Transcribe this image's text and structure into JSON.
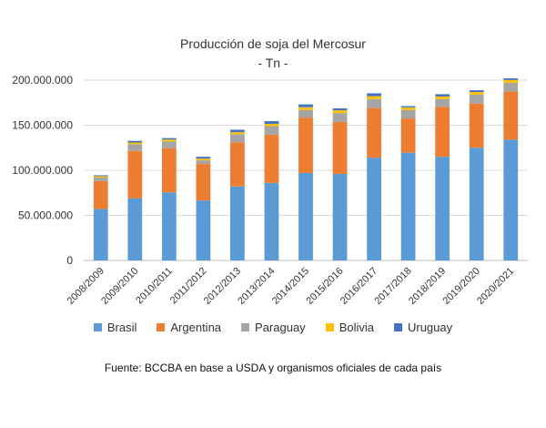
{
  "chart_data": {
    "type": "bar",
    "stacked": true,
    "title": "Producción de soja del Mercosur",
    "subtitle": "- Tn -",
    "source": "Fuente: BCCBA en base a USDA y organismos oficiales de cada país",
    "categories": [
      "2008/2009",
      "2009/2010",
      "2010/2011",
      "2011/2012",
      "2012/2013",
      "2013/2014",
      "2014/2015",
      "2015/2016",
      "2016/2017",
      "2017/2018",
      "2018/2019",
      "2019/2020",
      "2020/2021"
    ],
    "ylim": [
      0,
      200000000
    ],
    "yticks": [
      "0",
      "50.000.000",
      "100.000.000",
      "150.000.000",
      "200.000.000"
    ],
    "ytick_values": [
      0,
      50000000,
      100000000,
      150000000,
      200000000
    ],
    "grid": true,
    "legend_position": "bottom",
    "series": [
      {
        "name": "Brasil",
        "color": "#5b9bd5",
        "values": [
          57000000,
          69000000,
          75500000,
          66500000,
          82000000,
          86000000,
          97000000,
          96000000,
          114000000,
          119500000,
          115000000,
          125000000,
          134000000
        ]
      },
      {
        "name": "Argentina",
        "color": "#ed7d31",
        "values": [
          31000000,
          52500000,
          49000000,
          40500000,
          49000000,
          53500000,
          61500000,
          57500000,
          55000000,
          38000000,
          55500000,
          49000000,
          53500000
        ]
      },
      {
        "name": "Paraguay",
        "color": "#a5a5a5",
        "values": [
          4000000,
          7500000,
          7500000,
          4000000,
          9000000,
          9500000,
          8500000,
          10000000,
          10000000,
          9500000,
          8500000,
          10000000,
          9500000
        ]
      },
      {
        "name": "Bolivia",
        "color": "#ffc000",
        "values": [
          1500000,
          1800000,
          2100000,
          2000000,
          2300000,
          2500000,
          3000000,
          3000000,
          3200000,
          2800000,
          2900000,
          2800000,
          3200000
        ]
      },
      {
        "name": "Uruguay",
        "color": "#4472c4",
        "values": [
          1000000,
          1800000,
          1600000,
          2000000,
          2700000,
          3000000,
          3100000,
          2200000,
          3200000,
          1400000,
          2500000,
          2000000,
          1800000
        ]
      }
    ]
  }
}
